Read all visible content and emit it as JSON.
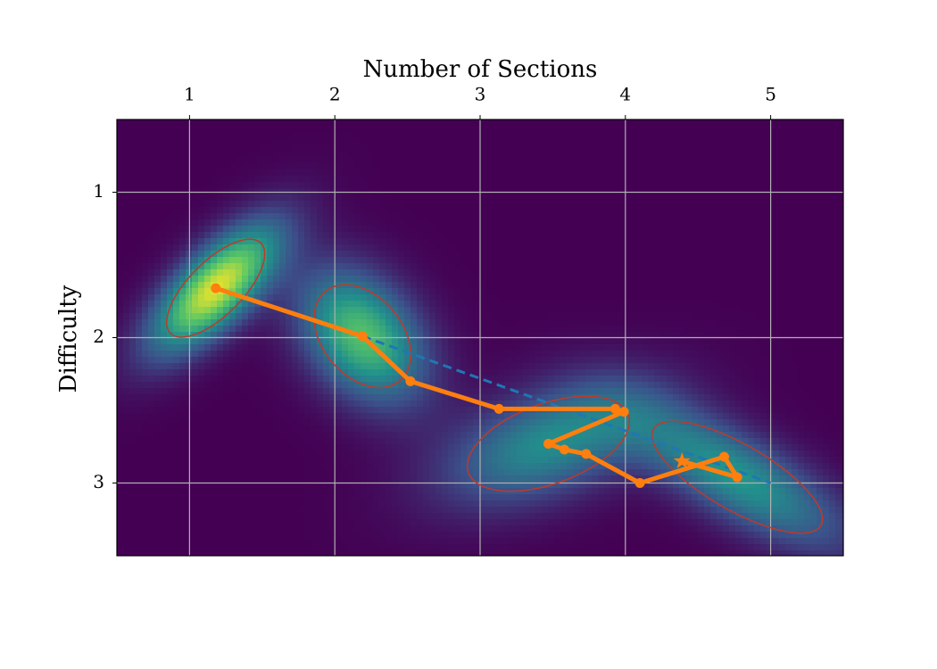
{
  "chart_data": {
    "type": "heatmap-path",
    "xlabel": "Number of Sections",
    "ylabel": "Difficulty",
    "xlim": [
      0.5,
      5.5
    ],
    "ylim": [
      3.5,
      0.5
    ],
    "xticks": [
      1,
      2,
      3,
      4,
      5
    ],
    "yticks": [
      1,
      2,
      3
    ],
    "grid": true,
    "ellipses": [
      {
        "cx": 1.18,
        "cy": 1.66,
        "width": 0.88,
        "height": 0.37,
        "angle": -45
      },
      {
        "cx": 2.19,
        "cy": 1.99,
        "width": 0.8,
        "height": 0.55,
        "angle": 50
      },
      {
        "cx": 3.47,
        "cy": 2.73,
        "width": 1.17,
        "height": 0.55,
        "angle": -20
      },
      {
        "cx": 4.77,
        "cy": 2.96,
        "width": 1.33,
        "height": 0.45,
        "angle": 30
      }
    ],
    "ellipse_color": "#c0392b",
    "path": {
      "color": "#ff7f0e",
      "x": [
        1.18,
        2.19,
        2.52,
        3.13,
        3.93,
        3.99,
        3.47,
        3.58,
        3.73,
        4.1,
        4.68,
        4.77,
        4.39
      ],
      "y": [
        1.66,
        1.99,
        2.3,
        2.49,
        2.49,
        2.51,
        2.73,
        2.77,
        2.8,
        3.0,
        2.82,
        2.96,
        2.85
      ]
    },
    "trend": {
      "color": "#1f77b4",
      "x": [
        2.19,
        5.0
      ],
      "y": [
        1.99,
        3.0
      ]
    }
  }
}
